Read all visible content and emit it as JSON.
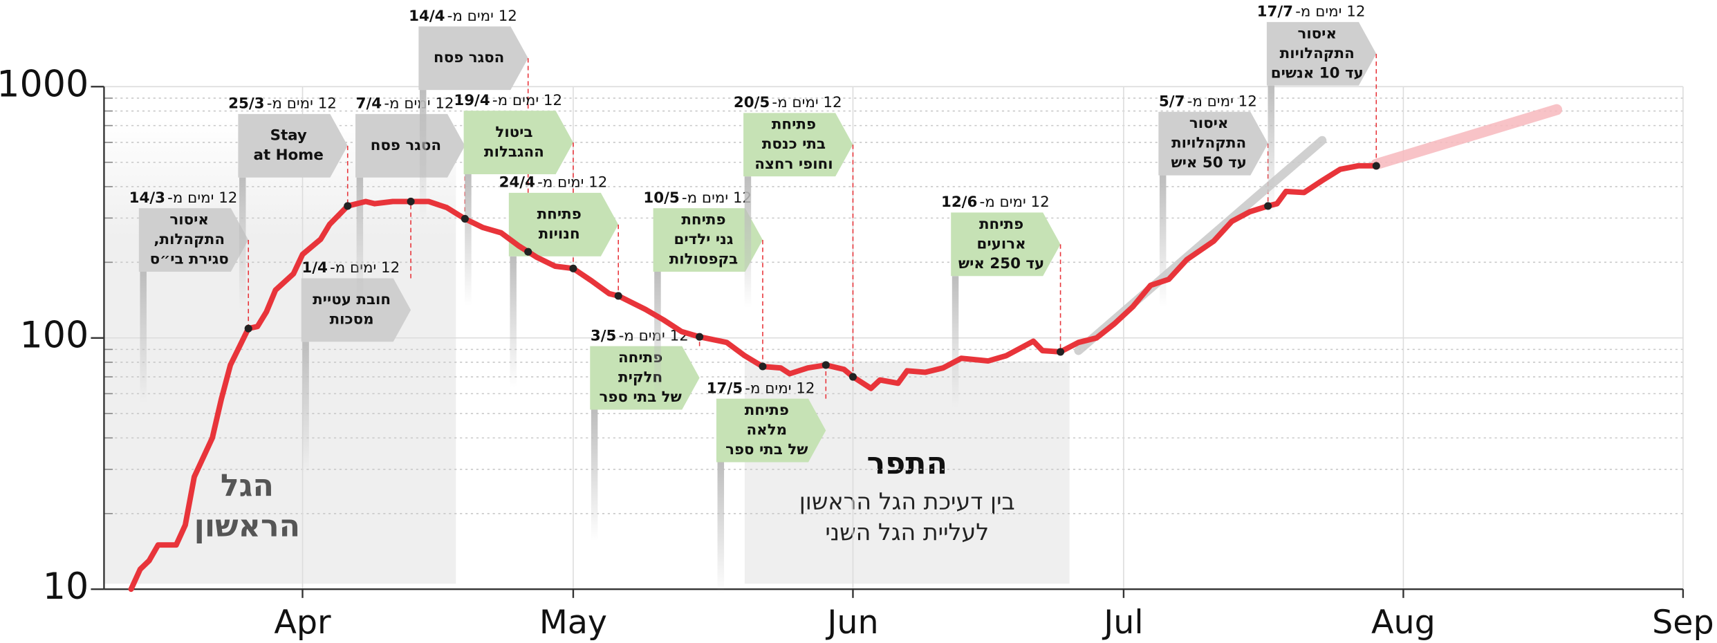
{
  "chart_data": {
    "type": "line",
    "ylog": true,
    "ylim": [
      10,
      1000
    ],
    "yticks": [
      10,
      100,
      1000
    ],
    "yticks_minor": [
      20,
      30,
      40,
      50,
      60,
      70,
      80,
      90,
      200,
      300,
      400,
      500,
      600,
      700,
      800,
      900
    ],
    "xlim": [
      "10/3",
      "1/9"
    ],
    "xticks": [
      {
        "value": "1/4",
        "label": "Apr"
      },
      {
        "value": "1/5",
        "label": "May"
      },
      {
        "value": "1/6",
        "label": "Jun"
      },
      {
        "value": "1/7",
        "label": "Jul"
      },
      {
        "value": "1/8",
        "label": "Aug"
      },
      {
        "value": "1/9",
        "label": "Sep"
      }
    ],
    "grid": true,
    "series": [
      {
        "color": "#e8343a",
        "x": [
          "13/3",
          "14/3",
          "15/3",
          "16/3",
          "18/3",
          "19/3",
          "20/3",
          "22/3",
          "23/3",
          "24/3",
          "26/3",
          "27/3",
          "28/3",
          "29/3",
          "31/3",
          "1/4",
          "3/4",
          "4/4",
          "6/4",
          "8/4",
          "9/4",
          "11/4",
          "13/4",
          "15/4",
          "17/4",
          "19/4",
          "21/4",
          "23/4",
          "25/4",
          "27/4",
          "29/4",
          "1/5",
          "3/5",
          "5/5",
          "6/5",
          "9/5",
          "11/5",
          "13/5",
          "15/5",
          "18/5",
          "20/5",
          "22/5",
          "24/5",
          "25/5",
          "27/5",
          "29/5",
          "31/5",
          "1/6",
          "3/6",
          "4/6",
          "6/6",
          "7/6",
          "9/6",
          "11/6",
          "13/6",
          "16/6",
          "18/6",
          "21/6",
          "22/6",
          "24/6",
          "26/6",
          "28/6",
          "30/6",
          "2/7",
          "4/7",
          "6/7",
          "8/7",
          "11/7",
          "13/7",
          "15/7",
          "17/7",
          "18/7",
          "19/7",
          "21/7",
          "23/7",
          "25/7",
          "27/7",
          "29/7"
        ],
        "values": [
          10,
          12,
          13,
          15,
          15,
          18,
          28,
          40,
          57,
          78,
          109,
          111,
          127,
          155,
          180,
          215,
          247,
          283,
          335,
          349,
          342,
          349,
          349,
          349,
          330,
          298,
          275,
          262,
          232,
          209,
          193,
          189,
          169,
          150,
          147,
          130,
          118,
          106,
          101,
          96,
          85,
          77,
          76,
          72,
          76,
          78,
          75,
          70,
          63,
          68,
          66,
          74,
          73,
          76,
          83,
          81,
          85,
          97,
          89,
          88,
          96,
          100,
          114,
          133,
          162,
          171,
          205,
          243,
          291,
          318,
          335,
          342,
          383,
          379,
          423,
          469,
          484,
          484
        ]
      },
      {
        "color": "#c8c8c8",
        "x": [
          "26/6",
          "23/7"
        ],
        "values": [
          89,
          611
        ]
      },
      {
        "color": "#f7b9bd",
        "x": [
          "29/7",
          "18/8"
        ],
        "values": [
          491,
          810
        ]
      }
    ],
    "regions": [
      {
        "from": "10/3",
        "to": "18/4",
        "lines": [
          "הגל",
          "הראשון"
        ]
      },
      {
        "from": "20/5",
        "to": "25/6",
        "title": "התפר",
        "lines": [
          "בין דעיכת הגל הראשון",
          "לעליית הגל השני"
        ]
      }
    ],
    "annotations": [
      {
        "prefix": "12 ימים מ-",
        "lag": 12,
        "date": "14/3",
        "color": "#cfcfcf",
        "lines": [
          "איסור",
          "התקהלות,",
          "סגירת בי״ס"
        ]
      },
      {
        "prefix": "12 ימים מ-",
        "lag": 12,
        "date": "25/3",
        "color": "#cfcfcf",
        "lines": [
          "Stay",
          "at Home"
        ]
      },
      {
        "prefix": "12 ימים מ-",
        "lag": 12,
        "date": "1/4",
        "color": "#cfcfcf",
        "lines": [
          "חובת עטיית",
          "מסכות"
        ]
      },
      {
        "prefix": "12 ימים מ-",
        "lag": 12,
        "date": "7/4",
        "color": "#cfcfcf",
        "lines": [
          "הסגר פסח"
        ]
      },
      {
        "prefix": "12 ימים מ-",
        "lag": 12,
        "date": "14/4",
        "color": "#cfcfcf",
        "lines": [
          "הסגר פסח"
        ]
      },
      {
        "prefix": "12 ימים מ-",
        "lag": 12,
        "date": "19/4",
        "color": "#c6e2b5",
        "lines": [
          "ביטול",
          "ההגבלות"
        ]
      },
      {
        "prefix": "12 ימים מ-",
        "lag": 12,
        "date": "24/4",
        "color": "#c6e2b5",
        "lines": [
          "פתיחת",
          "חנויות"
        ]
      },
      {
        "prefix": "12 ימים מ-",
        "lag": 12,
        "date": "3/5",
        "color": "#c6e2b5",
        "lines": [
          "פתיחה",
          "חלקית",
          "של בתי ספר"
        ]
      },
      {
        "prefix": "12 ימים מ-",
        "lag": 12,
        "date": "10/5",
        "color": "#c6e2b5",
        "lines": [
          "פתיחת",
          "גני ילדים",
          "בקפסולות"
        ]
      },
      {
        "prefix": "12 ימים מ-",
        "lag": 12,
        "date": "17/5",
        "color": "#c6e2b5",
        "lines": [
          "פתיחת",
          "מלאה",
          "של בתי ספר"
        ]
      },
      {
        "prefix": "12 ימים מ-",
        "lag": 12,
        "date": "20/5",
        "color": "#c6e2b5",
        "lines": [
          "פתיחת",
          "בתי כנסת",
          "וחופי רחצה"
        ]
      },
      {
        "prefix": "12 ימים מ-",
        "lag": 12,
        "date": "12/6",
        "color": "#c6e2b5",
        "lines": [
          "פתיחת",
          "ארועים",
          "עד 250 איש"
        ]
      },
      {
        "prefix": "12 ימים מ-",
        "lag": 12,
        "date": "5/7",
        "color": "#cfcfcf",
        "lines": [
          "איסור",
          "התקהלויות",
          "עד 50 איש"
        ]
      },
      {
        "prefix": "12 ימים מ-",
        "lag": 12,
        "date": "17/7",
        "color": "#cfcfcf",
        "lines": [
          "איסור",
          "התקהלויות",
          "עד 10 אנשים"
        ]
      }
    ]
  }
}
